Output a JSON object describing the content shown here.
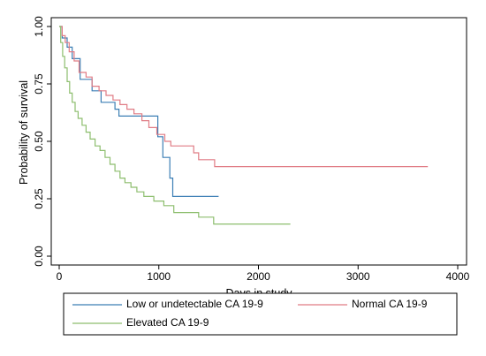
{
  "chart_data": {
    "type": "line",
    "xlabel": "Days in study",
    "ylabel": "Probability of survival",
    "xlim": [
      0,
      4000
    ],
    "ylim": [
      0,
      1
    ],
    "xticks": [
      0,
      1000,
      2000,
      3000,
      4000
    ],
    "yticks": [
      0,
      0.25,
      0.5,
      0.75,
      1
    ],
    "ytick_labels": [
      "0.00",
      "0.25",
      "0.50",
      "0.75",
      "1.00"
    ],
    "grid": false,
    "legend_position": "bottom",
    "series": [
      {
        "name": "Low or undetectable CA 19-9",
        "color": "#3c7fb5",
        "points": [
          [
            0,
            1.0
          ],
          [
            30,
            0.95
          ],
          [
            80,
            0.91
          ],
          [
            130,
            0.86
          ],
          [
            210,
            0.77
          ],
          [
            330,
            0.72
          ],
          [
            420,
            0.67
          ],
          [
            560,
            0.64
          ],
          [
            600,
            0.61
          ],
          [
            990,
            0.52
          ],
          [
            1040,
            0.43
          ],
          [
            1110,
            0.34
          ],
          [
            1140,
            0.26
          ],
          [
            1600,
            0.26
          ]
        ]
      },
      {
        "name": "Normal CA 19-9",
        "color": "#e07c85",
        "points": [
          [
            0,
            1.0
          ],
          [
            30,
            0.96
          ],
          [
            60,
            0.93
          ],
          [
            100,
            0.89
          ],
          [
            150,
            0.85
          ],
          [
            200,
            0.8
          ],
          [
            270,
            0.78
          ],
          [
            330,
            0.74
          ],
          [
            400,
            0.72
          ],
          [
            470,
            0.7
          ],
          [
            540,
            0.68
          ],
          [
            610,
            0.66
          ],
          [
            680,
            0.64
          ],
          [
            750,
            0.62
          ],
          [
            830,
            0.59
          ],
          [
            900,
            0.56
          ],
          [
            980,
            0.53
          ],
          [
            1060,
            0.5
          ],
          [
            1120,
            0.48
          ],
          [
            1350,
            0.45
          ],
          [
            1400,
            0.42
          ],
          [
            1560,
            0.39
          ],
          [
            3700,
            0.39
          ]
        ]
      },
      {
        "name": "Elevated CA 19-9",
        "color": "#8dbe6e",
        "points": [
          [
            0,
            1.0
          ],
          [
            15,
            0.93
          ],
          [
            35,
            0.87
          ],
          [
            55,
            0.82
          ],
          [
            80,
            0.76
          ],
          [
            105,
            0.71
          ],
          [
            130,
            0.67
          ],
          [
            160,
            0.63
          ],
          [
            190,
            0.6
          ],
          [
            230,
            0.57
          ],
          [
            270,
            0.54
          ],
          [
            310,
            0.51
          ],
          [
            360,
            0.48
          ],
          [
            410,
            0.46
          ],
          [
            460,
            0.43
          ],
          [
            510,
            0.4
          ],
          [
            560,
            0.37
          ],
          [
            610,
            0.34
          ],
          [
            660,
            0.32
          ],
          [
            720,
            0.3
          ],
          [
            780,
            0.28
          ],
          [
            850,
            0.26
          ],
          [
            950,
            0.24
          ],
          [
            1050,
            0.22
          ],
          [
            1150,
            0.19
          ],
          [
            1400,
            0.17
          ],
          [
            1550,
            0.14
          ],
          [
            2320,
            0.14
          ]
        ]
      }
    ]
  }
}
